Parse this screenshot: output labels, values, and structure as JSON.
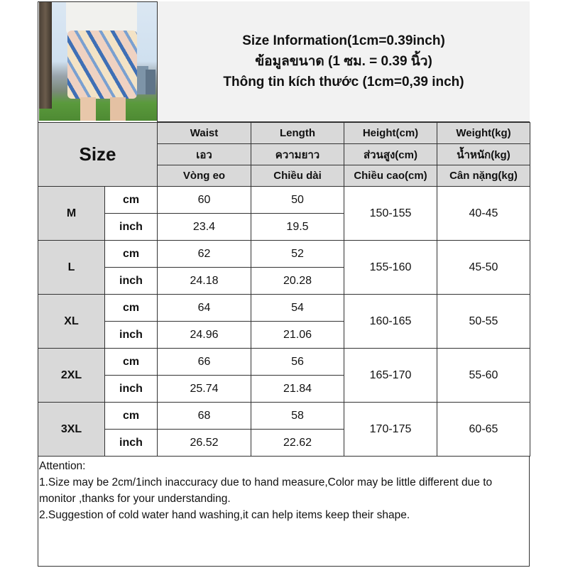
{
  "title": {
    "lines": [
      "Size Information(1cm=0.39inch)",
      "ข้อมูลขนาด (1 ซม. = 0.39 นิ้ว)",
      "Thông tin kích thước (1cm=0,39 inch)"
    ]
  },
  "table": {
    "size_label": "Size",
    "headers": [
      [
        "Waist",
        "Length",
        "Height(cm)",
        "Weight(kg)"
      ],
      [
        "เอว",
        "ความยาว",
        "ส่วนสูง(cm)",
        "น้ำหนัก(kg)"
      ],
      [
        "Vòng eo",
        "Chiều dài",
        "Chiều cao(cm)",
        "Cân nặng(kg)"
      ]
    ],
    "rows": [
      {
        "size": "M",
        "cm_label": "cm",
        "inch_label": "inch",
        "waist_cm": "60",
        "length_cm": "50",
        "waist_inch": "23.4",
        "length_inch": "19.5",
        "height": "150-155",
        "weight": "40-45"
      },
      {
        "size": "L",
        "cm_label": "cm",
        "inch_label": "inch",
        "waist_cm": "62",
        "length_cm": "52",
        "waist_inch": "24.18",
        "length_inch": "20.28",
        "height": "155-160",
        "weight": "45-50"
      },
      {
        "size": "XL",
        "cm_label": "cm",
        "inch_label": "inch",
        "waist_cm": "64",
        "length_cm": "54",
        "waist_inch": "24.96",
        "length_inch": "21.06",
        "height": "160-165",
        "weight": "50-55"
      },
      {
        "size": "2XL",
        "cm_label": "cm",
        "inch_label": "inch",
        "waist_cm": "66",
        "length_cm": "56",
        "waist_inch": "25.74",
        "length_inch": "21.84",
        "height": "165-170",
        "weight": "55-60"
      },
      {
        "size": "3XL",
        "cm_label": "cm",
        "inch_label": "inch",
        "waist_cm": "68",
        "length_cm": "58",
        "waist_inch": "26.52",
        "length_inch": "22.62",
        "height": "170-175",
        "weight": "60-65"
      }
    ]
  },
  "notes": [
    "Attention:",
    "1.Size may be 2cm/1inch inaccuracy due to hand measure,Color may be little different due to monitor ,thanks for your understanding.",
    "2.Suggestion of cold water hand washing,it can help items keep their shape."
  ]
}
